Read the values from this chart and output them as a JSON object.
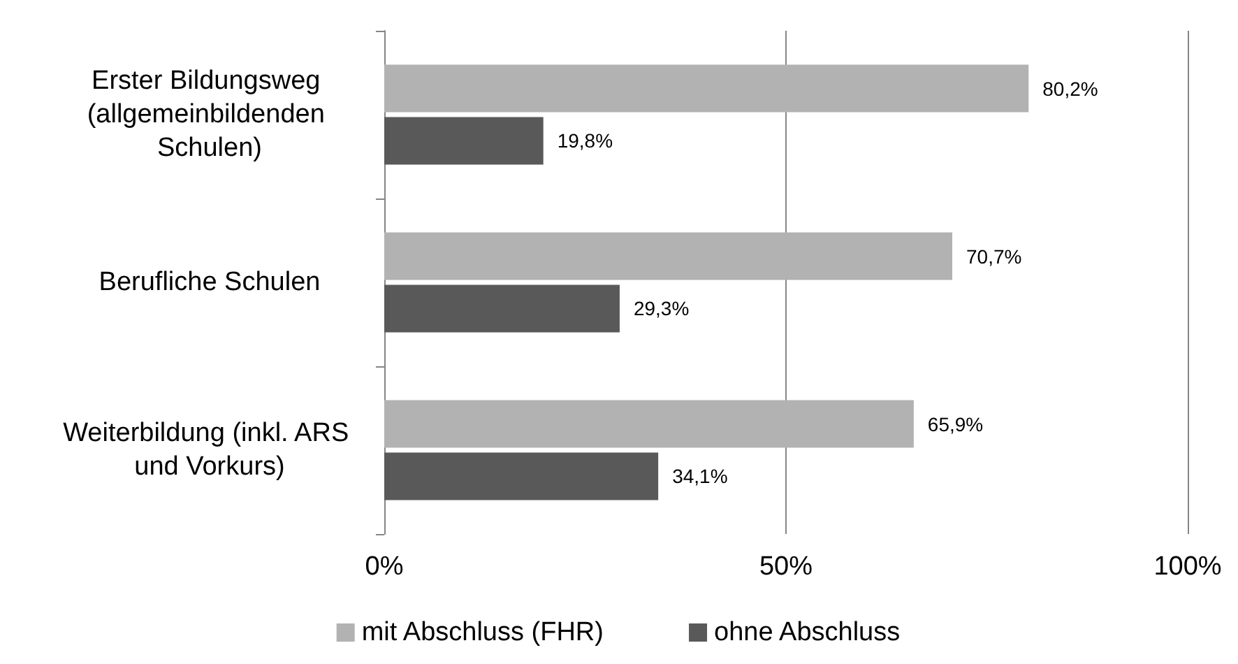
{
  "chart_data": {
    "type": "bar",
    "orientation": "horizontal",
    "categories": [
      "Erster Bildungsweg (allgemeinbildenden Schulen)",
      "Berufliche Schulen",
      "Weiterbildung (inkl. ARS und Vorkurs)"
    ],
    "series": [
      {
        "name": "mit Abschluss (FHR)",
        "color": "#b2b2b2",
        "values": [
          80.2,
          70.7,
          65.9
        ],
        "value_labels": [
          "80,2%",
          "70,7%",
          "65,9%"
        ]
      },
      {
        "name": "ohne Abschluss",
        "color": "#595959",
        "values": [
          19.8,
          29.3,
          34.1
        ],
        "value_labels": [
          "19,8%",
          "29,3%",
          "34,1%"
        ]
      }
    ],
    "xlim": [
      0,
      100
    ],
    "xticks": [
      {
        "value": 0,
        "label": "0%"
      },
      {
        "value": 50,
        "label": "50%"
      },
      {
        "value": 100,
        "label": "100%"
      }
    ],
    "grid": "x",
    "legend": "bottom"
  }
}
